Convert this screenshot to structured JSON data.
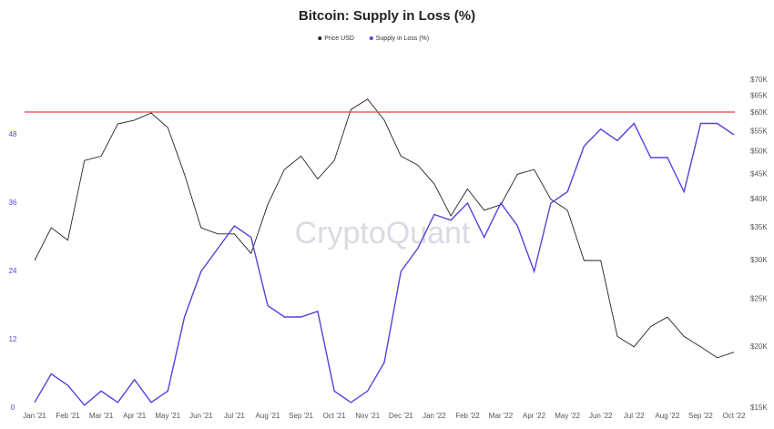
{
  "chart_data": {
    "type": "line",
    "title": "Bitcoin: Supply in Loss (%)",
    "watermark": "CryptoQuant",
    "x": [
      0,
      0.5,
      1,
      1.5,
      2,
      2.5,
      3,
      3.5,
      4,
      4.5,
      5,
      5.5,
      6,
      6.5,
      7,
      7.5,
      8,
      8.5,
      9,
      9.5,
      10,
      10.5,
      11,
      11.5,
      12,
      12.5,
      13,
      13.5,
      14,
      14.5,
      15,
      15.5,
      16,
      16.5,
      17,
      17.5,
      18,
      18.5,
      19,
      19.5,
      20,
      20.5,
      21
    ],
    "xlim": [
      -0.3,
      21.3
    ],
    "xticks": [
      {
        "value": 0,
        "label": "Jan '21"
      },
      {
        "value": 1,
        "label": "Feb '21"
      },
      {
        "value": 2,
        "label": "Mar '21"
      },
      {
        "value": 3,
        "label": "Apr '21"
      },
      {
        "value": 4,
        "label": "May '21"
      },
      {
        "value": 5,
        "label": "Jun '21"
      },
      {
        "value": 6,
        "label": "Jul '21"
      },
      {
        "value": 7,
        "label": "Aug '21"
      },
      {
        "value": 8,
        "label": "Sep '21"
      },
      {
        "value": 9,
        "label": "Oct '21"
      },
      {
        "value": 10,
        "label": "Nov '21"
      },
      {
        "value": 11,
        "label": "Dec '21"
      },
      {
        "value": 12,
        "label": "Jan '22"
      },
      {
        "value": 13,
        "label": "Feb '22"
      },
      {
        "value": 14,
        "label": "Mar '22"
      },
      {
        "value": 15,
        "label": "Apr '22"
      },
      {
        "value": 16,
        "label": "May '22"
      },
      {
        "value": 17,
        "label": "Jun '22"
      },
      {
        "value": 18,
        "label": "Jul '22"
      },
      {
        "value": 19,
        "label": "Aug '22"
      },
      {
        "value": 20,
        "label": "Sep '22"
      },
      {
        "value": 21,
        "label": "Oct '22"
      }
    ],
    "ylim": [
      0,
      57.6
    ],
    "yticks": [
      0,
      12,
      24,
      36,
      48
    ],
    "y2lim": [
      15000,
      70000
    ],
    "y2_log": true,
    "y2ticks": [
      {
        "value": 15000,
        "label": "$15K"
      },
      {
        "value": 20000,
        "label": "$20K"
      },
      {
        "value": 25000,
        "label": "$25K"
      },
      {
        "value": 30000,
        "label": "$30K"
      },
      {
        "value": 35000,
        "label": "$35K"
      },
      {
        "value": 40000,
        "label": "$40K"
      },
      {
        "value": 45000,
        "label": "$45K"
      },
      {
        "value": 50000,
        "label": "$50K"
      },
      {
        "value": 55000,
        "label": "$55K"
      },
      {
        "value": 60000,
        "label": "$60K"
      },
      {
        "value": 65000,
        "label": "$65K"
      },
      {
        "value": 70000,
        "label": "$70K"
      }
    ],
    "reference_line": {
      "value": 52,
      "color": "#e8413c"
    },
    "legend": "top",
    "series": [
      {
        "name": "Price USD",
        "color": "#222222",
        "axis": "y2",
        "values": [
          30000,
          35000,
          33000,
          48000,
          49000,
          57000,
          58000,
          60000,
          56000,
          45000,
          35000,
          34000,
          34000,
          31000,
          39000,
          46000,
          49000,
          44000,
          48000,
          61000,
          64000,
          58000,
          49000,
          47000,
          43000,
          37000,
          42000,
          38000,
          39000,
          45000,
          46000,
          40000,
          38000,
          30000,
          30000,
          21000,
          20000,
          22000,
          23000,
          21000,
          20000,
          19000,
          19500
        ]
      },
      {
        "name": "Supply in Loss (%)",
        "color": "#5b3fe0",
        "values": [
          1,
          6,
          4,
          0.5,
          3,
          1,
          5,
          1,
          3,
          16,
          24,
          28,
          32,
          30,
          18,
          16,
          16,
          17,
          3,
          1,
          3,
          8,
          24,
          28,
          34,
          33,
          36,
          30,
          36,
          32,
          24,
          36,
          38,
          46,
          49,
          47,
          50,
          44,
          44,
          38,
          50,
          50,
          48
        ]
      }
    ]
  }
}
